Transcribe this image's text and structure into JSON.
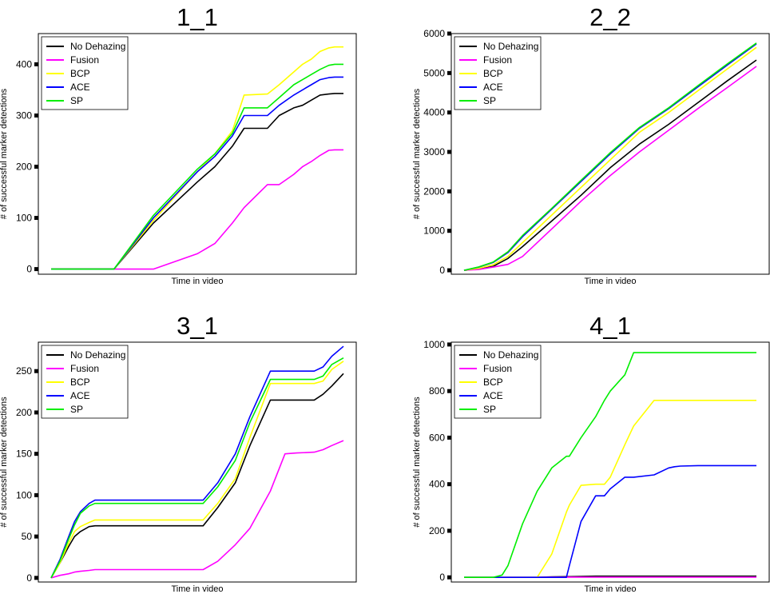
{
  "chart_data": [
    {
      "type": "line",
      "title": "1_1",
      "xlabel": "Time in video",
      "ylabel": "# of successful marker detections",
      "ylim": [
        -10,
        460
      ],
      "yticks": [
        0,
        100,
        200,
        300,
        400
      ],
      "legend": "top-left",
      "x": [
        0,
        0.215,
        0.35,
        0.5,
        0.56,
        0.62,
        0.66,
        0.74,
        0.78,
        0.83,
        0.86,
        0.89,
        0.92,
        0.95,
        0.97,
        1.0
      ],
      "series": [
        {
          "name": "No Dehazing",
          "color": "#000000",
          "values": [
            0,
            0,
            90,
            170,
            200,
            240,
            275,
            275,
            300,
            315,
            320,
            330,
            340,
            342,
            343,
            343
          ]
        },
        {
          "name": "Fusion",
          "color": "#ff00ff",
          "values": [
            0,
            0,
            0,
            30,
            50,
            90,
            120,
            165,
            165,
            185,
            200,
            210,
            222,
            232,
            233,
            233
          ]
        },
        {
          "name": "BCP",
          "color": "#ffff00",
          "values": [
            0,
            0,
            95,
            190,
            225,
            270,
            340,
            342,
            360,
            385,
            400,
            410,
            425,
            432,
            434,
            434
          ]
        },
        {
          "name": "ACE",
          "color": "#0000ff",
          "values": [
            0,
            0,
            100,
            190,
            220,
            260,
            300,
            300,
            320,
            340,
            350,
            360,
            370,
            374,
            375,
            375
          ]
        },
        {
          "name": "SP",
          "color": "#00ee00",
          "values": [
            0,
            0,
            105,
            195,
            225,
            265,
            315,
            315,
            335,
            360,
            370,
            380,
            390,
            398,
            400,
            400
          ]
        }
      ]
    },
    {
      "type": "line",
      "title": "2_2",
      "xlabel": "Time in video",
      "ylabel": "# of successful marker detections",
      "ylim": [
        -100,
        6000
      ],
      "yticks": [
        0,
        1000,
        2000,
        3000,
        4000,
        5000,
        6000
      ],
      "legend": "top-left",
      "x": [
        0,
        0.05,
        0.1,
        0.15,
        0.2,
        0.3,
        0.4,
        0.5,
        0.6,
        0.7,
        0.8,
        0.9,
        1.0
      ],
      "series": [
        {
          "name": "No Dehazing",
          "color": "#000000",
          "values": [
            0,
            30,
            100,
            300,
            600,
            1250,
            1900,
            2600,
            3200,
            3700,
            4250,
            4800,
            5330
          ]
        },
        {
          "name": "Fusion",
          "color": "#ff00ff",
          "values": [
            0,
            20,
            80,
            150,
            350,
            1050,
            1750,
            2400,
            3000,
            3550,
            4100,
            4630,
            5170
          ]
        },
        {
          "name": "BCP",
          "color": "#ffff00",
          "values": [
            0,
            50,
            140,
            350,
            700,
            1400,
            2100,
            2800,
            3500,
            4000,
            4550,
            5100,
            5650
          ]
        },
        {
          "name": "ACE",
          "color": "#0000ff",
          "values": [
            0,
            80,
            200,
            450,
            850,
            1550,
            2250,
            2950,
            3600,
            4100,
            4650,
            5200,
            5740
          ]
        },
        {
          "name": "SP",
          "color": "#00ee00",
          "values": [
            0,
            85,
            210,
            470,
            880,
            1570,
            2280,
            2980,
            3620,
            4120,
            4680,
            5230,
            5760
          ]
        }
      ]
    },
    {
      "type": "line",
      "title": "3_1",
      "xlabel": "Time in video",
      "ylabel": "# of successful marker detections",
      "ylim": [
        -5,
        285
      ],
      "yticks": [
        0,
        50,
        100,
        150,
        200,
        250
      ],
      "legend": "top-left",
      "x": [
        0,
        0.03,
        0.06,
        0.08,
        0.1,
        0.13,
        0.15,
        0.3,
        0.4,
        0.52,
        0.57,
        0.63,
        0.68,
        0.75,
        0.8,
        0.84,
        0.9,
        0.93,
        0.96,
        1.0
      ],
      "series": [
        {
          "name": "No Dehazing",
          "color": "#000000",
          "values": [
            0,
            18,
            38,
            50,
            56,
            62,
            63,
            63,
            63,
            63,
            85,
            115,
            160,
            215,
            215,
            215,
            215,
            222,
            232,
            247
          ]
        },
        {
          "name": "Fusion",
          "color": "#ff00ff",
          "values": [
            0,
            3,
            5,
            7,
            8,
            9,
            10,
            10,
            10,
            10,
            20,
            40,
            60,
            105,
            150,
            151,
            152,
            155,
            160,
            166
          ]
        },
        {
          "name": "BCP",
          "color": "#ffff00",
          "values": [
            0,
            18,
            42,
            56,
            62,
            67,
            70,
            70,
            70,
            70,
            90,
            120,
            170,
            235,
            235,
            235,
            235,
            238,
            252,
            262
          ]
        },
        {
          "name": "ACE",
          "color": "#0000ff",
          "values": [
            0,
            22,
            50,
            68,
            80,
            90,
            94,
            94,
            94,
            94,
            115,
            150,
            195,
            250,
            250,
            250,
            250,
            255,
            268,
            280
          ]
        },
        {
          "name": "SP",
          "color": "#00ee00",
          "values": [
            0,
            20,
            47,
            64,
            78,
            87,
            90,
            90,
            90,
            90,
            110,
            142,
            188,
            240,
            240,
            240,
            240,
            244,
            258,
            266
          ]
        }
      ]
    },
    {
      "type": "line",
      "title": "4_1",
      "xlabel": "Time in video",
      "ylabel": "# of successful marker detections",
      "ylim": [
        -20,
        1010
      ],
      "yticks": [
        0,
        200,
        400,
        600,
        800,
        1000
      ],
      "legend": "top-left",
      "x": [
        0,
        0.1,
        0.13,
        0.15,
        0.2,
        0.25,
        0.3,
        0.35,
        0.36,
        0.4,
        0.45,
        0.48,
        0.5,
        0.55,
        0.58,
        0.65,
        0.7,
        0.72,
        0.74,
        0.8,
        0.95,
        1.0
      ],
      "series": [
        {
          "name": "No Dehazing",
          "color": "#000000",
          "values": [
            0,
            0,
            0,
            0,
            0,
            0,
            2,
            3,
            3,
            4,
            5,
            5,
            5,
            5,
            5,
            5,
            5,
            5,
            5,
            5,
            5,
            5
          ]
        },
        {
          "name": "Fusion",
          "color": "#ff00ff",
          "values": [
            0,
            0,
            0,
            0,
            0,
            0,
            1,
            1,
            1,
            1,
            1,
            1,
            1,
            1,
            1,
            1,
            1,
            1,
            1,
            1,
            1,
            1
          ]
        },
        {
          "name": "BCP",
          "color": "#ffff00",
          "values": [
            0,
            0,
            0,
            0,
            0,
            0,
            100,
            280,
            310,
            395,
            400,
            400,
            430,
            570,
            650,
            760,
            760,
            760,
            760,
            760,
            760,
            760
          ]
        },
        {
          "name": "ACE",
          "color": "#0000ff",
          "values": [
            0,
            0,
            0,
            0,
            0,
            0,
            0,
            0,
            50,
            240,
            350,
            350,
            380,
            430,
            430,
            440,
            470,
            475,
            478,
            480,
            480,
            480
          ]
        },
        {
          "name": "SP",
          "color": "#00ee00",
          "values": [
            0,
            0,
            10,
            50,
            230,
            370,
            470,
            520,
            520,
            600,
            690,
            760,
            800,
            870,
            965,
            965,
            965,
            965,
            965,
            965,
            965,
            965
          ]
        }
      ]
    }
  ]
}
